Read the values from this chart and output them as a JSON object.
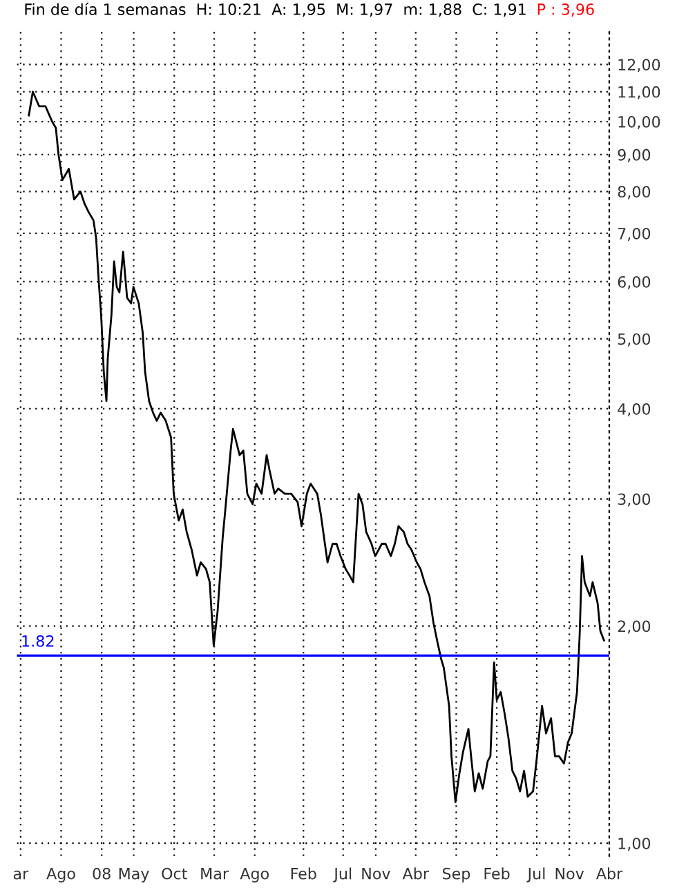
{
  "chart_data": {
    "type": "line",
    "title": "Fin de día 1 semanas  H: 10:21  A: 1,95  M: 1,97  m: 1,88  C: 1,91",
    "annotations": [
      "P : 3,96"
    ],
    "log": "y",
    "grid": true,
    "marker": "none",
    "line_style": "solid",
    "xlim": [
      "2007-02-15",
      "2013-04-01"
    ],
    "xticks": [
      {
        "value": "2007-03-01",
        "label": "ar"
      },
      {
        "value": "2007-08-01",
        "label": "Ago"
      },
      {
        "value": "2008-01-01",
        "label": "08"
      },
      {
        "value": "2008-05-01",
        "label": "May"
      },
      {
        "value": "2008-10-01",
        "label": "Oct"
      },
      {
        "value": "2009-03-01",
        "label": "Mar"
      },
      {
        "value": "2009-08-01",
        "label": "Ago"
      },
      {
        "value": "2010-02-01",
        "label": "Feb"
      },
      {
        "value": "2010-07-01",
        "label": "Jul"
      },
      {
        "value": "2010-11-01",
        "label": "Nov"
      },
      {
        "value": "2011-04-01",
        "label": "Abr"
      },
      {
        "value": "2011-09-01",
        "label": "Sep"
      },
      {
        "value": "2012-02-01",
        "label": "Feb"
      },
      {
        "value": "2012-07-01",
        "label": "Jul"
      },
      {
        "value": "2012-11-01",
        "label": "Nov"
      },
      {
        "value": "2013-04-01",
        "label": "Abr"
      }
    ],
    "ylim": [
      0.96,
      13.5
    ],
    "yticks": [
      {
        "value": 1,
        "label": "1,00"
      },
      {
        "value": 2,
        "label": "2,00"
      },
      {
        "value": 3,
        "label": "3,00"
      },
      {
        "value": 4,
        "label": "4,00"
      },
      {
        "value": 5,
        "label": "5,00"
      },
      {
        "value": 6,
        "label": "6,00"
      },
      {
        "value": 7,
        "label": "7,00"
      },
      {
        "value": 8,
        "label": "8,00"
      },
      {
        "value": 9,
        "label": "9,00"
      },
      {
        "value": 10,
        "label": "10,00"
      },
      {
        "value": 11,
        "label": "11,00"
      },
      {
        "value": 12,
        "label": "12,00"
      }
    ],
    "ref_lines": [
      {
        "axis": "y",
        "value": 1.82,
        "label": "1.82",
        "color": "#0000ff"
      }
    ],
    "series": [
      {
        "color": "#000000",
        "x": [
          "2007-04-01",
          "2007-04-16",
          "2007-05-10",
          "2007-06-03",
          "2007-06-28",
          "2007-07-12",
          "2007-07-22",
          "2007-08-06",
          "2007-08-30",
          "2007-09-19",
          "2007-10-13",
          "2007-10-28",
          "2007-11-12",
          "2007-12-01",
          "2007-12-11",
          "2007-12-21",
          "2007-12-30",
          "2008-01-09",
          "2008-01-19",
          "2008-01-24",
          "2008-02-07",
          "2008-02-17",
          "2008-02-27",
          "2008-03-08",
          "2008-03-22",
          "2008-04-06",
          "2008-04-21",
          "2008-04-30",
          "2008-05-20",
          "2008-06-04",
          "2008-06-13",
          "2008-06-28",
          "2008-07-13",
          "2008-07-27",
          "2008-08-11",
          "2008-08-30",
          "2008-09-19",
          "2008-09-29",
          "2008-10-18",
          "2008-11-02",
          "2008-11-17",
          "2008-12-06",
          "2008-12-26",
          "2009-01-09",
          "2009-01-29",
          "2009-02-12",
          "2009-02-27",
          "2009-03-14",
          "2009-04-02",
          "2009-04-12",
          "2009-05-02",
          "2009-05-11",
          "2009-06-05",
          "2009-06-19",
          "2009-07-04",
          "2009-07-24",
          "2009-08-07",
          "2009-08-27",
          "2009-09-15",
          "2009-09-25",
          "2009-10-15",
          "2009-10-29",
          "2009-11-23",
          "2009-12-17",
          "2010-01-10",
          "2010-01-25",
          "2010-02-14",
          "2010-02-28",
          "2010-03-25",
          "2010-04-08",
          "2010-04-23",
          "2010-05-03",
          "2010-05-22",
          "2010-06-06",
          "2010-06-21",
          "2010-07-10",
          "2010-07-25",
          "2010-08-08",
          "2010-08-28",
          "2010-09-12",
          "2010-09-26",
          "2010-10-16",
          "2010-10-30",
          "2010-11-24",
          "2010-12-08",
          "2010-12-28",
          "2011-01-12",
          "2011-01-26",
          "2011-02-15",
          "2011-03-01",
          "2011-03-16",
          "2011-04-05",
          "2011-04-19",
          "2011-05-04",
          "2011-05-23",
          "2011-06-07",
          "2011-06-22",
          "2011-07-06",
          "2011-07-16",
          "2011-08-05",
          "2011-08-14",
          "2011-08-29",
          "2011-09-13",
          "2011-09-27",
          "2011-10-17",
          "2011-10-27",
          "2011-11-10",
          "2011-11-25",
          "2011-12-10",
          "2011-12-29",
          "2012-01-08",
          "2012-01-22",
          "2012-02-01",
          "2012-02-16",
          "2012-03-02",
          "2012-03-16",
          "2012-03-31",
          "2012-04-14",
          "2012-04-29",
          "2012-05-14",
          "2012-05-28",
          "2012-06-17",
          "2012-07-02",
          "2012-07-21",
          "2012-08-05",
          "2012-08-24",
          "2012-09-08",
          "2012-09-23",
          "2012-10-12",
          "2012-10-27",
          "2012-11-10",
          "2012-11-30",
          "2012-12-10",
          "2012-12-19",
          "2012-12-29",
          "2013-01-18",
          "2013-01-28",
          "2013-02-16",
          "2013-02-26",
          "2013-03-12"
        ],
        "values": [
          10.2,
          11.0,
          10.5,
          10.5,
          10.0,
          9.8,
          9.0,
          8.3,
          8.6,
          7.8,
          8.0,
          7.7,
          7.5,
          7.3,
          6.9,
          6.0,
          5.4,
          4.5,
          4.1,
          4.7,
          5.4,
          6.4,
          5.9,
          5.8,
          6.6,
          5.7,
          5.6,
          5.9,
          5.6,
          5.1,
          4.5,
          4.1,
          3.95,
          3.85,
          3.95,
          3.85,
          3.65,
          3.05,
          2.8,
          2.9,
          2.7,
          2.55,
          2.35,
          2.45,
          2.4,
          2.3,
          1.88,
          2.1,
          2.65,
          2.9,
          3.5,
          3.75,
          3.45,
          3.5,
          3.05,
          2.95,
          3.15,
          3.05,
          3.45,
          3.3,
          3.05,
          3.1,
          3.05,
          3.05,
          2.97,
          2.75,
          3.05,
          3.15,
          3.05,
          2.85,
          2.6,
          2.45,
          2.6,
          2.6,
          2.5,
          2.4,
          2.35,
          2.3,
          3.05,
          2.95,
          2.7,
          2.6,
          2.5,
          2.6,
          2.6,
          2.5,
          2.6,
          2.75,
          2.7,
          2.6,
          2.55,
          2.45,
          2.4,
          2.3,
          2.2,
          2.02,
          1.9,
          1.8,
          1.75,
          1.55,
          1.32,
          1.14,
          1.25,
          1.34,
          1.44,
          1.32,
          1.18,
          1.25,
          1.19,
          1.3,
          1.32,
          1.78,
          1.58,
          1.62,
          1.51,
          1.4,
          1.26,
          1.23,
          1.18,
          1.26,
          1.16,
          1.18,
          1.32,
          1.55,
          1.42,
          1.49,
          1.32,
          1.32,
          1.29,
          1.38,
          1.42,
          1.62,
          1.94,
          2.5,
          2.3,
          2.2,
          2.3,
          2.15,
          1.97,
          1.91
        ]
      }
    ]
  }
}
